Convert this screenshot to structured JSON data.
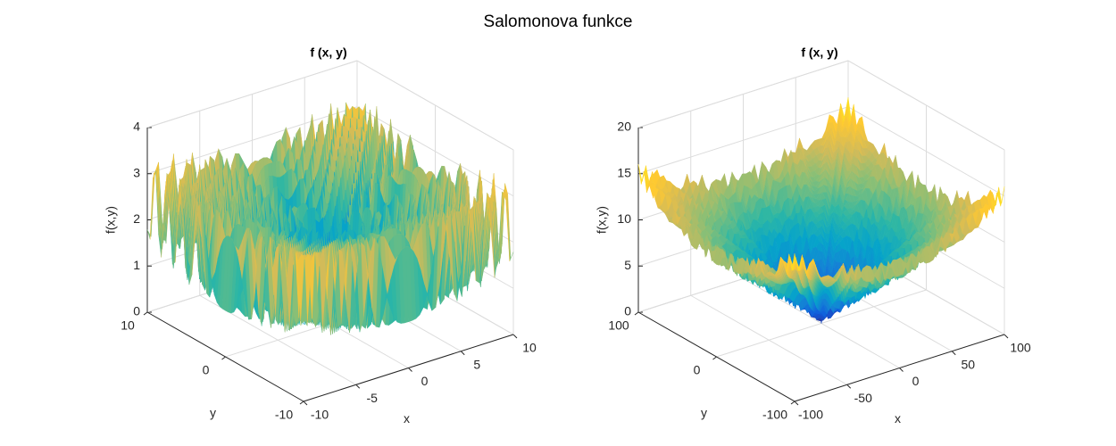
{
  "title": "Salomonova funkce",
  "chart_data": [
    {
      "type": "surface",
      "title": "f (x, y)",
      "xlabel": "x",
      "ylabel": "y",
      "zlabel": "f(x,y)",
      "xlim": [
        -10,
        10
      ],
      "ylim": [
        -10,
        10
      ],
      "zlim": [
        0,
        4
      ],
      "xticks": [
        -10,
        -5,
        0,
        5,
        10
      ],
      "yticks": [
        -10,
        0,
        10
      ],
      "zticks": [
        0,
        1,
        2,
        3,
        4
      ],
      "grid": true
    },
    {
      "type": "surface",
      "title": "f (x, y)",
      "xlabel": "x",
      "ylabel": "y",
      "zlabel": "f(x,y)",
      "xlim": [
        -100,
        100
      ],
      "ylim": [
        -100,
        100
      ],
      "zlim": [
        0,
        20
      ],
      "xticks": [
        -100,
        -50,
        0,
        50,
        100
      ],
      "yticks": [
        -100,
        0,
        100
      ],
      "zticks": [
        0,
        5,
        10,
        15,
        20
      ],
      "grid": true
    }
  ]
}
